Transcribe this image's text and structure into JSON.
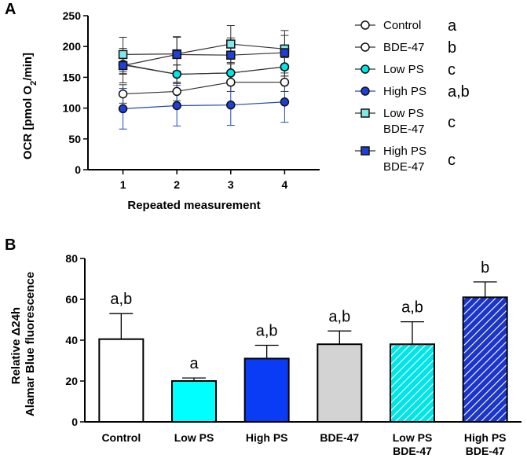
{
  "chart_data": [
    {
      "panel": "A",
      "type": "line",
      "xlabel": "Repeated measurement",
      "ylabel": "OCR [pmol O",
      "ylabel_sub": "2",
      "ylabel_tail": "/min]",
      "x": [
        1,
        2,
        3,
        4
      ],
      "xticks": [
        "1",
        "2",
        "3",
        "4"
      ],
      "xlim": [
        0.35,
        4.65
      ],
      "ylim": [
        0,
        250
      ],
      "yticks": [
        0,
        50,
        100,
        150,
        200,
        250
      ],
      "series": [
        {
          "name": "Control",
          "name_lines": [
            "Control"
          ],
          "marker": "circle",
          "fill": "#ffffff",
          "line_color": "#333333",
          "values": [
            123,
            127,
            142,
            142
          ],
          "errors": [
            15,
            15,
            15,
            15
          ],
          "letter": "a"
        },
        {
          "name": "BDE-47",
          "name_lines": [
            "BDE-47"
          ],
          "marker": "circle",
          "fill": "#ffffff",
          "line_color": "#333333",
          "values": [
            170,
            155,
            157,
            167
          ],
          "errors": [
            15,
            15,
            15,
            15
          ],
          "letter": "b"
        },
        {
          "name": "Low PS",
          "name_lines": [
            "Low PS"
          ],
          "marker": "circle",
          "fill": "#00e5e5",
          "line_color": "#333333",
          "values": [
            171,
            155,
            157,
            167
          ],
          "errors": [
            15,
            15,
            15,
            15
          ],
          "letter": "c"
        },
        {
          "name": "High PS",
          "name_lines": [
            "High PS"
          ],
          "marker": "circle",
          "fill": "#1f3fd6",
          "line_color": "#1f4bb8",
          "values": [
            99,
            104,
            105,
            110
          ],
          "errors": [
            33,
            33,
            33,
            33
          ],
          "letter": "a,b"
        },
        {
          "name": "Low PS BDE-47",
          "name_lines": [
            "Low PS",
            "BDE-47"
          ],
          "marker": "square",
          "fill": "#7fe8e8",
          "line_color": "#333333",
          "values": [
            187,
            188,
            204,
            196
          ],
          "errors": [
            28,
            28,
            30,
            30
          ],
          "letter": "c"
        },
        {
          "name": "High PS BDE-47",
          "name_lines": [
            "High PS",
            "BDE-47"
          ],
          "marker": "square",
          "fill": "#1f3fd6",
          "line_color": "#333333",
          "values": [
            169,
            187,
            186,
            190
          ],
          "errors": [
            28,
            28,
            28,
            28
          ],
          "letter": "c"
        }
      ]
    },
    {
      "panel": "B",
      "type": "bar",
      "ylabel_lines": [
        "Relative Δ24h",
        "Alamar Blue fluorescence"
      ],
      "ylim": [
        0,
        80
      ],
      "yticks": [
        0,
        20,
        40,
        60,
        80
      ],
      "categories": [
        "Control",
        "Low PS",
        "High PS",
        "BDE-47",
        "Low PS BDE-47",
        "High PS BDE-47"
      ],
      "category_lines": [
        [
          "Control"
        ],
        [
          "Low PS"
        ],
        [
          "High PS"
        ],
        [
          "BDE-47"
        ],
        [
          "Low PS",
          "BDE-47"
        ],
        [
          "High PS",
          "BDE-47"
        ]
      ],
      "values": [
        40.5,
        20,
        31,
        38,
        38,
        61
      ],
      "errors": [
        12.5,
        1.5,
        6.5,
        6.5,
        11,
        7.5
      ],
      "letters": [
        "a,b",
        "a",
        "a,b",
        "a,b",
        "a,b",
        "b"
      ],
      "fills": [
        "#ffffff",
        "#00ffff",
        "#0a3cf5",
        "#d3d3d3",
        "#00e5e5",
        "#1a35c8"
      ],
      "hatched": [
        false,
        false,
        false,
        false,
        true,
        true
      ]
    }
  ],
  "panel_labels": {
    "a": "A",
    "b": "B"
  }
}
